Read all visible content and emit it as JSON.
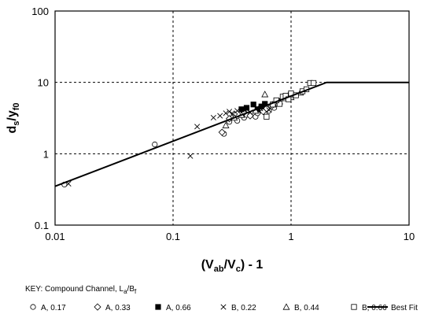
{
  "chart_data": {
    "type": "scatter",
    "x_scale": "log",
    "y_scale": "log",
    "xlim": [
      0.01,
      10
    ],
    "ylim": [
      0.1,
      100
    ],
    "x_ticks": [
      "0.01",
      "0.1",
      "1",
      "10"
    ],
    "y_ticks": [
      "0.1",
      "1",
      "10",
      "100"
    ],
    "grid": "dashed",
    "xlabel": {
      "open": "(V",
      "sub1": "ab",
      "mid": "/V",
      "sub2": "c",
      "close": ") - 1"
    },
    "ylabel": {
      "a": "d",
      "sub1": "s",
      "mid": "/y",
      "sub2": "f0"
    },
    "key_title": {
      "main": "KEY:  Compound Channel, L",
      "sub1": "a",
      "mid": "/B",
      "sub2": "f"
    },
    "series": [
      {
        "name": "A, 0.17",
        "marker": "circle",
        "points": [
          [
            0.012,
            0.37
          ],
          [
            0.07,
            1.35
          ],
          [
            0.27,
            1.9
          ],
          [
            0.3,
            2.8
          ],
          [
            0.35,
            2.9
          ],
          [
            0.4,
            3.2
          ],
          [
            0.42,
            3.5
          ],
          [
            0.5,
            3.3
          ],
          [
            0.52,
            3.7
          ],
          [
            0.6,
            3.8
          ],
          [
            0.65,
            4.0
          ],
          [
            0.72,
            4.4
          ]
        ]
      },
      {
        "name": "A, 0.33",
        "marker": "diamond",
        "points": [
          [
            0.26,
            2.0
          ],
          [
            0.3,
            3.1
          ],
          [
            0.33,
            3.6
          ],
          [
            0.4,
            3.8
          ],
          [
            0.45,
            3.4
          ],
          [
            0.55,
            4.1
          ],
          [
            0.58,
            3.9
          ],
          [
            0.62,
            4.3
          ],
          [
            0.68,
            4.6
          ]
        ]
      },
      {
        "name": "A, 0.66",
        "marker": "square-filled",
        "points": [
          [
            0.38,
            4.2
          ],
          [
            0.42,
            4.4
          ],
          [
            0.48,
            4.9
          ],
          [
            0.52,
            4.2
          ],
          [
            0.56,
            4.6
          ],
          [
            0.6,
            5.0
          ]
        ]
      },
      {
        "name": "B, 0.22",
        "marker": "cross",
        "points": [
          [
            0.013,
            0.38
          ],
          [
            0.14,
            0.93
          ],
          [
            0.16,
            2.4
          ],
          [
            0.22,
            3.2
          ],
          [
            0.25,
            3.4
          ],
          [
            0.28,
            3.7
          ],
          [
            0.3,
            3.9
          ],
          [
            0.32,
            3.6
          ],
          [
            0.35,
            4.0
          ],
          [
            0.4,
            4.1
          ],
          [
            0.45,
            3.8
          ],
          [
            0.55,
            4.3
          ],
          [
            0.65,
            4.1
          ]
        ]
      },
      {
        "name": "B, 0.44",
        "marker": "triangle",
        "points": [
          [
            0.28,
            2.5
          ],
          [
            0.33,
            3.2
          ],
          [
            0.38,
            3.5
          ],
          [
            0.5,
            4.0
          ],
          [
            0.6,
            6.8
          ],
          [
            0.7,
            4.9
          ],
          [
            0.8,
            5.4
          ],
          [
            0.9,
            6.0
          ],
          [
            1.0,
            6.2
          ],
          [
            1.2,
            7.2
          ],
          [
            0.78,
            5.1
          ],
          [
            0.95,
            6.6
          ]
        ]
      },
      {
        "name": "B, 0.66",
        "marker": "square",
        "points": [
          [
            0.62,
            3.3
          ],
          [
            0.7,
            4.9
          ],
          [
            0.8,
            5.0
          ],
          [
            0.85,
            6.3
          ],
          [
            0.9,
            6.5
          ],
          [
            1.0,
            7.0
          ],
          [
            1.1,
            6.6
          ],
          [
            1.25,
            7.5
          ],
          [
            1.35,
            8.0
          ],
          [
            1.45,
            9.8
          ],
          [
            1.55,
            9.8
          ],
          [
            0.75,
            5.6
          ],
          [
            0.95,
            5.8
          ]
        ]
      },
      {
        "name": "Best Fit",
        "marker": "line",
        "points": [
          [
            0.01,
            0.35
          ],
          [
            2.0,
            10
          ],
          [
            10,
            10
          ]
        ]
      }
    ]
  }
}
